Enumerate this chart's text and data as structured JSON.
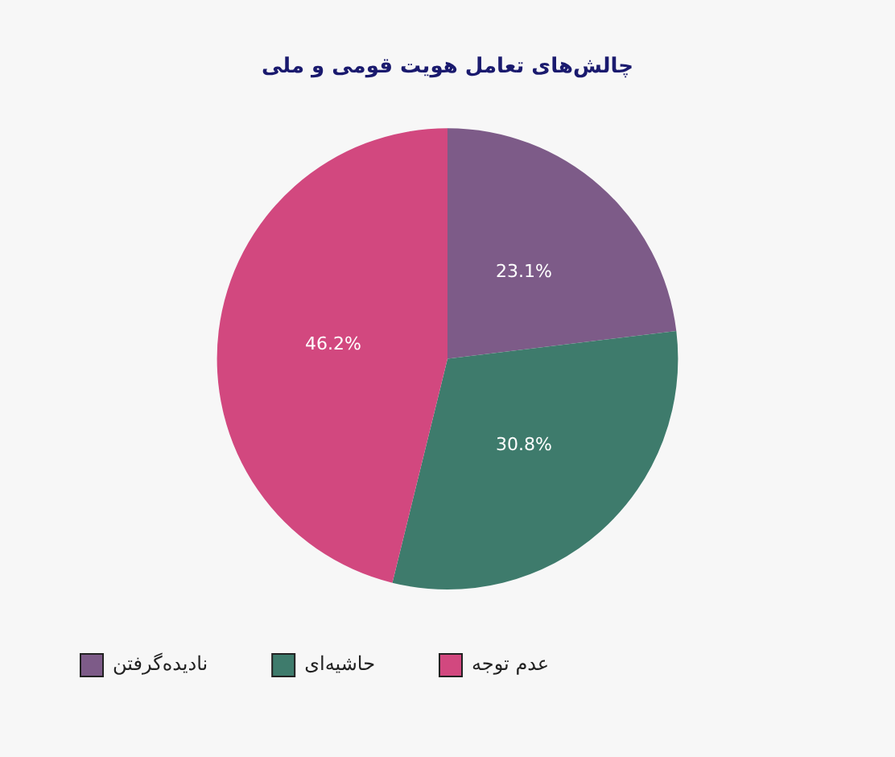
{
  "chart_data": {
    "type": "pie",
    "title": "چالش‌های تعامل هویت قومی و ملی",
    "categories": [
      "نادیده‌گرفتن",
      "حاشیه‌ای",
      "عدم توجه"
    ],
    "values": [
      23.1,
      30.8,
      46.2
    ],
    "colors": [
      "#7d5b88",
      "#3e7b6c",
      "#d2487f"
    ],
    "value_labels": [
      "23.1%",
      "30.8%",
      "46.2%"
    ],
    "legend": "bottom left"
  }
}
